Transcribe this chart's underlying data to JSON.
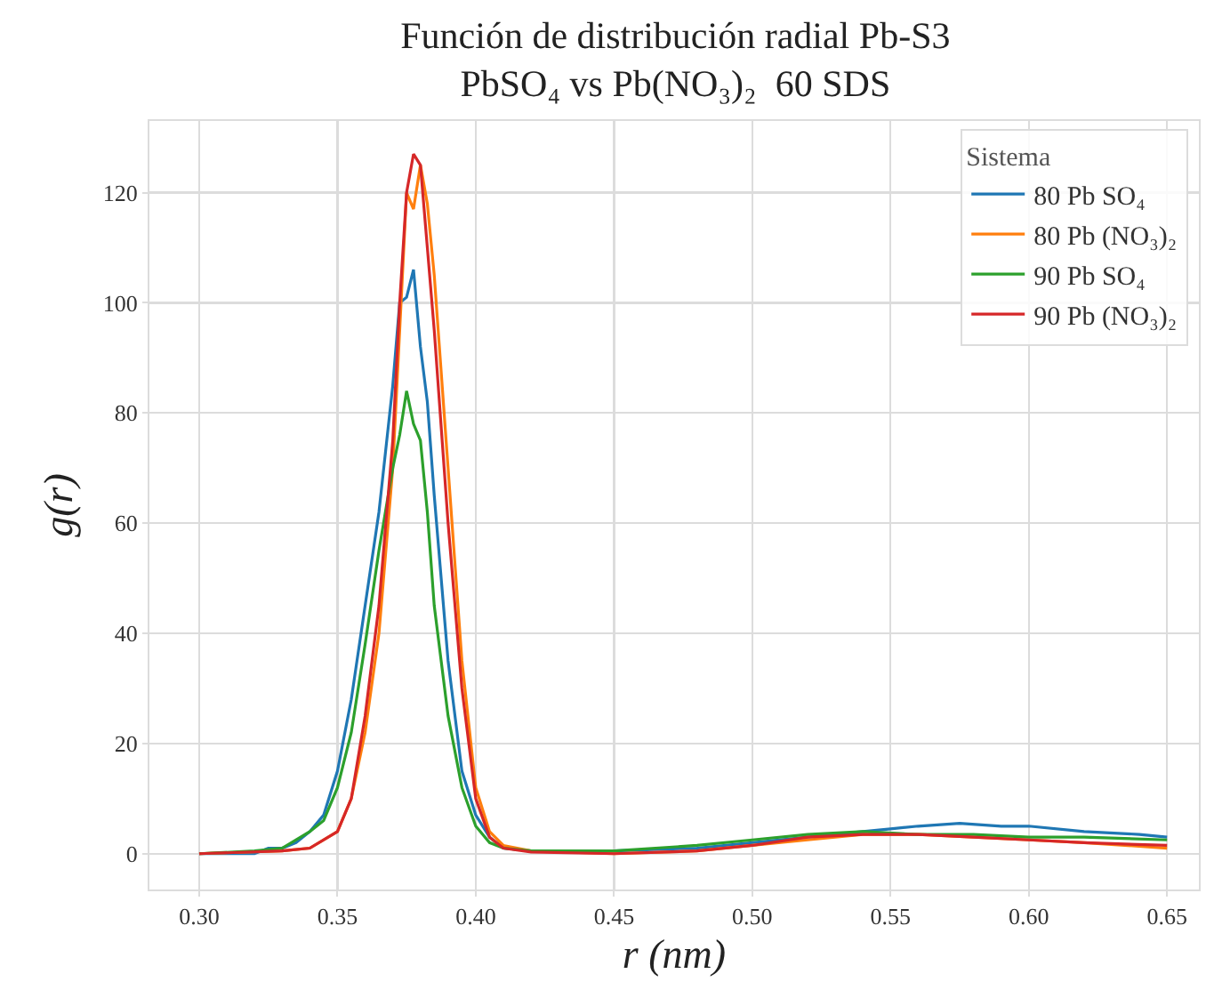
{
  "chart_data": {
    "type": "line",
    "title": "Función de distribución radial Pb-S3",
    "subtitle": "PbSO₄ vs Pb(NO₃)₂  60 SDS",
    "xlabel": "r (nm)",
    "ylabel": "g(r)",
    "legend_title": "Sistema",
    "legend": "top right",
    "grid": true,
    "marker": "none",
    "line_style": "solid",
    "xlim": [
      0.282,
      0.6615
    ],
    "ylim": [
      -6.5,
      133
    ],
    "xticks": [
      {
        "value": 0.3,
        "label": "0.30"
      },
      {
        "value": 0.35,
        "label": "0.35"
      },
      {
        "value": 0.4,
        "label": "0.40"
      },
      {
        "value": 0.45,
        "label": "0.45"
      },
      {
        "value": 0.5,
        "label": "0.50"
      },
      {
        "value": 0.55,
        "label": "0.55"
      },
      {
        "value": 0.6,
        "label": "0.60"
      },
      {
        "value": 0.65,
        "label": "0.65"
      }
    ],
    "yticks": [
      0,
      20,
      40,
      60,
      80,
      100,
      120
    ],
    "series": [
      {
        "name": "80 Pb SO₄",
        "color": "#1f77b4",
        "x": [
          0.3,
          0.32,
          0.325,
          0.33,
          0.335,
          0.34,
          0.345,
          0.35,
          0.355,
          0.36,
          0.365,
          0.37,
          0.3725,
          0.375,
          0.3775,
          0.38,
          0.3825,
          0.385,
          0.39,
          0.395,
          0.4,
          0.405,
          0.41,
          0.42,
          0.45,
          0.48,
          0.5,
          0.52,
          0.54,
          0.55,
          0.56,
          0.575,
          0.59,
          0.6,
          0.62,
          0.64,
          0.65
        ],
        "values": [
          0,
          0,
          1,
          1,
          2,
          4,
          7,
          15,
          28,
          45,
          62,
          85,
          100,
          101,
          106,
          92,
          82,
          65,
          35,
          15,
          7,
          3,
          1,
          0.5,
          0.5,
          1,
          2,
          3,
          4,
          4.5,
          5,
          5.5,
          5,
          5,
          4,
          3.5,
          3
        ]
      },
      {
        "name": "80 Pb (NO₃)₂",
        "color": "#ff7f0e",
        "x": [
          0.3,
          0.33,
          0.34,
          0.35,
          0.355,
          0.36,
          0.365,
          0.37,
          0.3725,
          0.375,
          0.3775,
          0.38,
          0.3825,
          0.385,
          0.39,
          0.395,
          0.4,
          0.405,
          0.41,
          0.42,
          0.45,
          0.48,
          0.5,
          0.52,
          0.54,
          0.56,
          0.58,
          0.6,
          0.62,
          0.65
        ],
        "values": [
          0,
          0.5,
          1,
          4,
          10,
          22,
          40,
          70,
          95,
          120,
          117,
          125,
          118,
          105,
          70,
          35,
          12,
          4,
          1.5,
          0.5,
          0,
          0.5,
          1.5,
          2.5,
          3.5,
          3.5,
          3,
          2.5,
          2,
          1
        ]
      },
      {
        "name": "90 Pb SO₄",
        "color": "#2ca02c",
        "x": [
          0.3,
          0.32,
          0.33,
          0.34,
          0.345,
          0.35,
          0.355,
          0.36,
          0.365,
          0.37,
          0.3725,
          0.375,
          0.3775,
          0.38,
          0.3825,
          0.385,
          0.39,
          0.395,
          0.4,
          0.405,
          0.41,
          0.42,
          0.45,
          0.48,
          0.5,
          0.52,
          0.54,
          0.56,
          0.58,
          0.6,
          0.62,
          0.65
        ],
        "values": [
          0,
          0.5,
          1,
          4,
          6,
          12,
          22,
          38,
          55,
          70,
          76,
          84,
          78,
          75,
          62,
          45,
          25,
          12,
          5,
          2,
          1,
          0.5,
          0.5,
          1.5,
          2.5,
          3.5,
          4,
          3.5,
          3.5,
          3,
          3,
          2.5
        ]
      },
      {
        "name": "90 Pb (NO₃)₂",
        "color": "#d62728",
        "x": [
          0.3,
          0.33,
          0.34,
          0.35,
          0.355,
          0.36,
          0.365,
          0.37,
          0.3725,
          0.375,
          0.3775,
          0.38,
          0.3825,
          0.385,
          0.39,
          0.395,
          0.4,
          0.405,
          0.41,
          0.42,
          0.45,
          0.48,
          0.5,
          0.52,
          0.54,
          0.56,
          0.58,
          0.6,
          0.62,
          0.65
        ],
        "values": [
          0,
          0.5,
          1,
          4,
          10,
          25,
          45,
          75,
          100,
          120,
          127,
          125,
          110,
          95,
          60,
          30,
          10,
          3,
          1,
          0.3,
          0,
          0.5,
          1.5,
          3,
          3.5,
          3.5,
          3,
          2.5,
          2,
          1.5
        ]
      }
    ]
  }
}
